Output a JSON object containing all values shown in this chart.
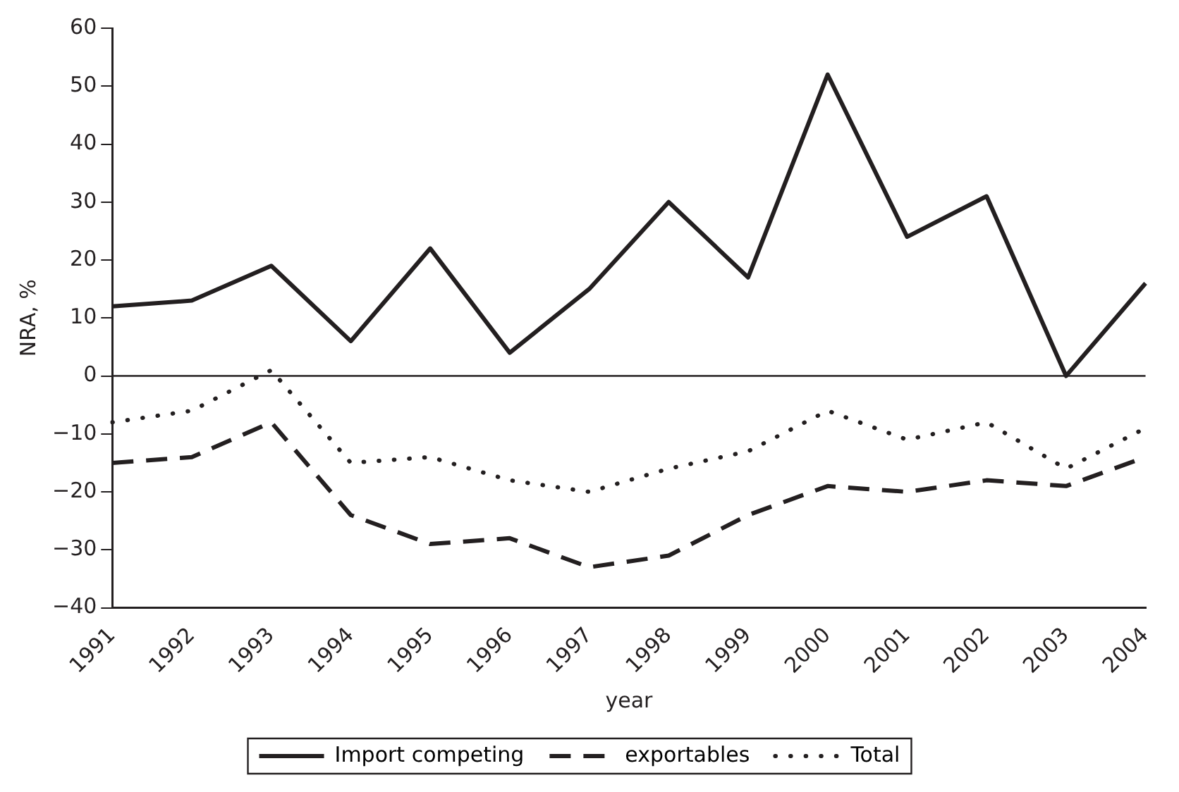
{
  "chart_data": {
    "type": "line",
    "xlabel": "year",
    "ylabel": "NRA, %",
    "categories": [
      "1991",
      "1992",
      "1993",
      "1994",
      "1995",
      "1996",
      "1997",
      "1998",
      "1999",
      "2000",
      "2001",
      "2002",
      "2003",
      "2004"
    ],
    "series": [
      {
        "name": "Import competing",
        "color": "#231f20",
        "line_style": "solid",
        "values": [
          12,
          13,
          19,
          6,
          22,
          4,
          15,
          30,
          17,
          52,
          24,
          31,
          0,
          16
        ]
      },
      {
        "name": "exportables",
        "color": "#231f20",
        "line_style": "dashed",
        "values": [
          -15,
          -14,
          -8,
          -24,
          -29,
          -28,
          -33,
          -31,
          -24,
          -19,
          -20,
          -18,
          -19,
          -14
        ]
      },
      {
        "name": "Total",
        "color": "#231f20",
        "line_style": "dotted",
        "values": [
          -8,
          -6,
          1,
          -15,
          -14,
          -18,
          -20,
          -16,
          -13,
          -6,
          -11,
          -8,
          -16,
          -9
        ]
      }
    ],
    "ylim": [
      -40,
      60
    ],
    "yticks": [
      -40,
      -30,
      -20,
      -10,
      0,
      10,
      20,
      30,
      40,
      50,
      60
    ],
    "ref_lines": [
      {
        "axis": "y",
        "value": 0,
        "color": "#231f20"
      }
    ],
    "grid": false,
    "legend": "bottom",
    "marker": "none"
  }
}
